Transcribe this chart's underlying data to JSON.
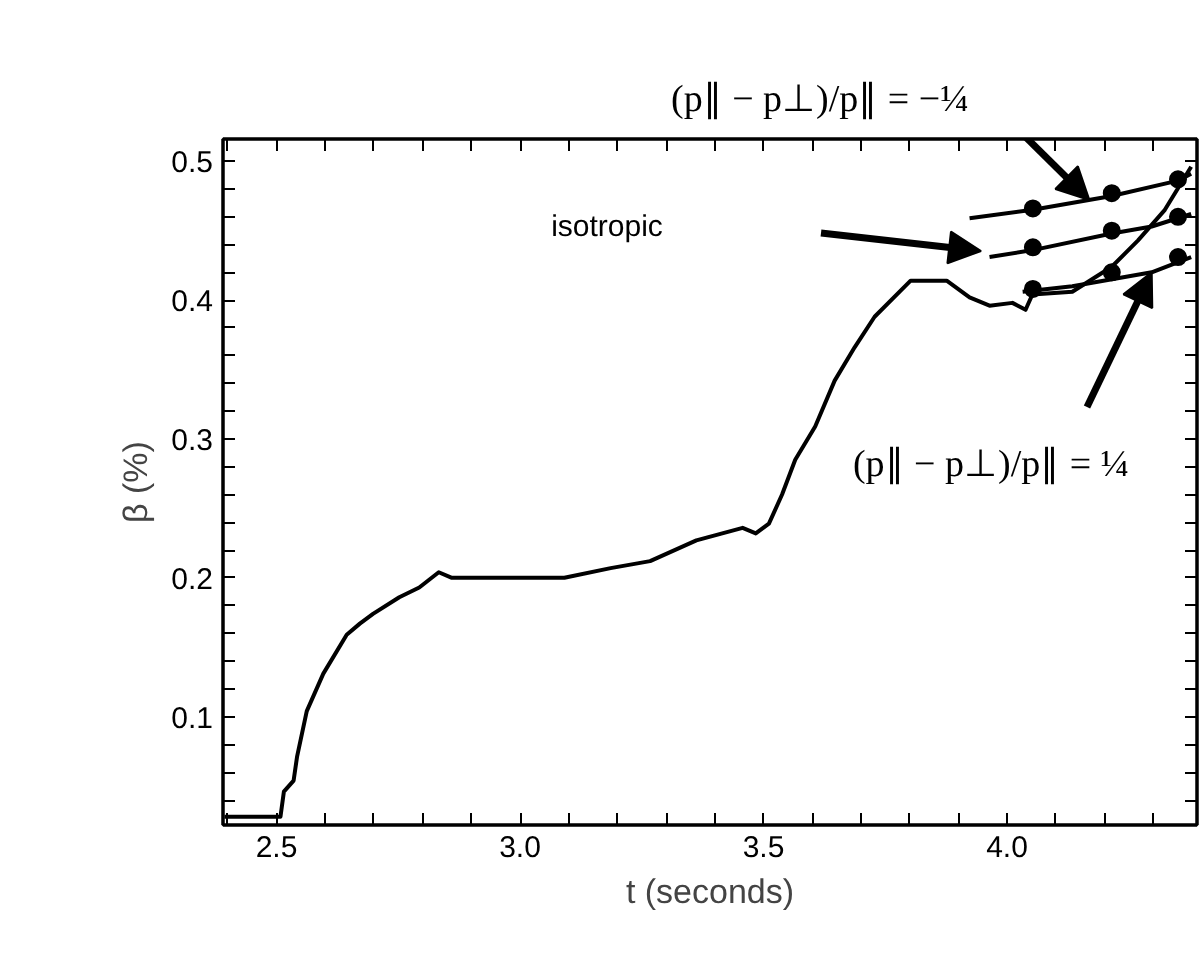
{
  "chart_data": {
    "type": "line",
    "xlabel": "t (seconds)",
    "ylabel": "β (%)",
    "xlim": [
      2.39,
      4.39
    ],
    "ylim": [
      0.022,
      0.516
    ],
    "xticks": [
      {
        "value": 2.4,
        "label": null
      },
      2.5,
      {
        "value": 2.6,
        "label": null
      },
      {
        "value": 2.7,
        "label": null
      },
      {
        "value": 2.8,
        "label": null
      },
      {
        "value": 2.9,
        "label": null
      },
      {
        "value": 3,
        "label": "3.0"
      },
      {
        "value": 3.1,
        "label": null
      },
      {
        "value": 3.2,
        "label": null
      },
      {
        "value": 3.3,
        "label": null
      },
      {
        "value": 3.4,
        "label": null
      },
      3.5,
      {
        "value": 3.6,
        "label": null
      },
      {
        "value": 3.7,
        "label": null
      },
      {
        "value": 3.8,
        "label": null
      },
      {
        "value": 3.9,
        "label": null
      },
      {
        "value": 4,
        "label": "4.0"
      },
      {
        "value": 4.1,
        "label": null
      },
      {
        "value": 4.2,
        "label": null
      },
      {
        "value": 4.3,
        "label": null
      }
    ],
    "yticks": [
      {
        "value": 0.04,
        "label": null
      },
      {
        "value": 0.06,
        "label": null
      },
      {
        "value": 0.08,
        "label": null
      },
      0.1,
      {
        "value": 0.12,
        "label": null
      },
      {
        "value": 0.14,
        "label": null
      },
      {
        "value": 0.16,
        "label": null
      },
      {
        "value": 0.18,
        "label": null
      },
      0.2,
      {
        "value": 0.22,
        "label": null
      },
      {
        "value": 0.24,
        "label": null
      },
      {
        "value": 0.26,
        "label": null
      },
      {
        "value": 0.28,
        "label": null
      },
      0.3,
      {
        "value": 0.32,
        "label": null
      },
      {
        "value": 0.34,
        "label": null
      },
      {
        "value": 0.36,
        "label": null
      },
      {
        "value": 0.38,
        "label": null
      },
      0.4,
      {
        "value": 0.42,
        "label": null
      },
      {
        "value": 0.44,
        "label": null
      },
      {
        "value": 0.46,
        "label": null
      },
      {
        "value": 0.48,
        "label": null
      },
      0.5
    ],
    "grid": false,
    "series": [
      {
        "color": "#000000",
        "x": [
          2.393,
          2.508,
          2.515,
          2.535,
          2.542,
          2.562,
          2.596,
          2.644,
          2.671,
          2.698,
          2.752,
          2.793,
          2.833,
          2.86,
          3.091,
          3.186,
          3.267,
          3.362,
          3.457,
          3.484,
          3.511,
          3.538,
          3.565,
          3.606,
          3.646,
          3.687,
          3.728,
          3.802,
          3.876,
          3.923,
          3.964,
          4.011,
          4.038,
          4.052,
          4.134,
          4.215,
          4.269,
          4.324,
          4.378
        ],
        "values": [
          0.028,
          0.028,
          0.046,
          0.054,
          0.071,
          0.104,
          0.131,
          0.159,
          0.167,
          0.174,
          0.186,
          0.193,
          0.204,
          0.2,
          0.2,
          0.207,
          0.212,
          0.227,
          0.236,
          0.232,
          0.239,
          0.26,
          0.285,
          0.309,
          0.342,
          0.366,
          0.388,
          0.414,
          0.414,
          0.402,
          0.396,
          0.398,
          0.393,
          0.404,
          0.406,
          0.424,
          0.443,
          0.465,
          0.496
        ]
      },
      {
        "color": "#000000",
        "x": [
          3.923,
          4.053,
          4.215,
          4.351,
          4.378
        ],
        "values": [
          0.459,
          0.465,
          0.475,
          0.486,
          0.491
        ]
      },
      {
        "color": "#000000",
        "x": [
          3.964,
          4.053,
          4.215,
          4.297,
          4.378
        ],
        "values": [
          0.431,
          0.436,
          0.448,
          0.453,
          0.462
        ]
      },
      {
        "color": "#000000",
        "x": [
          4.032,
          4.134,
          4.297,
          4.378
        ],
        "values": [
          0.406,
          0.41,
          0.42,
          0.431
        ]
      },
      {
        "type": "scatter",
        "marker": "circle",
        "color": "#000000",
        "x": [
          4.053,
          4.215,
          4.351
        ],
        "values": [
          0.466,
          0.477,
          0.487
        ]
      },
      {
        "type": "scatter",
        "marker": "circle",
        "color": "#000000",
        "x": [
          4.053,
          4.215,
          4.351
        ],
        "values": [
          0.438,
          0.45,
          0.46
        ]
      },
      {
        "type": "scatter",
        "marker": "circle",
        "color": "#000000",
        "x": [
          4.053,
          4.215,
          4.351
        ],
        "values": [
          0.408,
          0.42,
          0.431
        ]
      }
    ],
    "annotations": [
      {
        "text": "(p∥ − p⊥)/p∥ = −¼",
        "x": 4.169,
        "y": 0.472
      },
      "isotropic",
      {
        "text": "(p∥ − p⊥)/p∥ = ¼",
        "x": 4.297,
        "y": 0.42
      }
    ]
  }
}
